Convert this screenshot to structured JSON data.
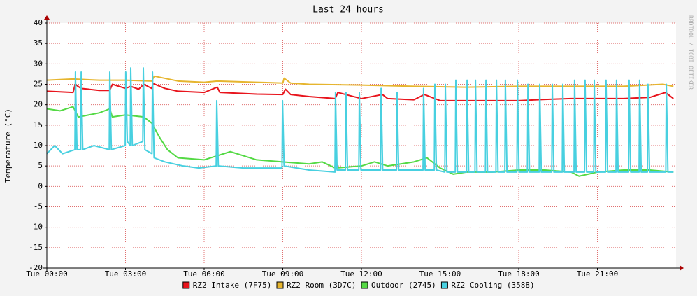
{
  "chart_data": {
    "type": "line",
    "title": "Last 24 hours",
    "y_label": "Temperature (°C)",
    "watermark": "RRDTOOL / TOBI OETIKER",
    "xlim": [
      0,
      24
    ],
    "xticks": [
      {
        "value": 0,
        "label": "Tue 00:00"
      },
      {
        "value": 3,
        "label": "Tue 03:00"
      },
      {
        "value": 6,
        "label": "Tue 06:00"
      },
      {
        "value": 9,
        "label": "Tue 09:00"
      },
      {
        "value": 12,
        "label": "Tue 12:00"
      },
      {
        "value": 15,
        "label": "Tue 15:00"
      },
      {
        "value": 18,
        "label": "Tue 18:00"
      },
      {
        "value": 21,
        "label": "Tue 21:00"
      }
    ],
    "ylim": [
      -20,
      40
    ],
    "yticks": [
      -20,
      -15,
      -10,
      -5,
      0,
      5,
      10,
      15,
      20,
      25,
      30,
      35,
      40
    ],
    "grid": true,
    "legend": "bottom",
    "series": [
      {
        "name": "RZ2 Intake (7F75)",
        "color": "#e8141c",
        "x": [
          0,
          1,
          1.08,
          1.3,
          2,
          2.4,
          2.5,
          3,
          3.2,
          3.5,
          3.7,
          4,
          4.05,
          4.5,
          5,
          6,
          6.5,
          6.6,
          8,
          9,
          9.1,
          9.3,
          10,
          11,
          11.1,
          12,
          12.8,
          13,
          14,
          14.4,
          15,
          16,
          17,
          18,
          19,
          20,
          21,
          22,
          23,
          23.6,
          23.9
        ],
        "values": [
          23.3,
          23,
          25,
          24,
          23.5,
          23.5,
          25,
          24,
          24.5,
          23.8,
          25,
          24,
          25.2,
          24,
          23.3,
          23,
          24.3,
          23,
          22.6,
          22.5,
          23.8,
          22.5,
          22,
          21.5,
          23,
          21.5,
          22.5,
          21.5,
          21.2,
          22.5,
          21,
          21,
          21,
          21,
          21.3,
          21.5,
          21.5,
          21.5,
          21.8,
          23,
          21.5
        ]
      },
      {
        "name": "RZ2 Room (3D7C)",
        "color": "#e6b52e",
        "x": [
          0,
          1,
          2,
          3,
          4,
          4.1,
          5,
          6,
          6.5,
          8,
          9,
          9.05,
          9.3,
          10,
          12,
          14,
          16,
          18,
          20,
          22,
          23.5,
          23.9
        ],
        "values": [
          26,
          26.3,
          26,
          26,
          25.8,
          27,
          25.8,
          25.5,
          25.8,
          25.5,
          25.3,
          26.5,
          25.3,
          25,
          24.8,
          24.5,
          24.3,
          24.5,
          24.5,
          24.5,
          25,
          24.5
        ]
      },
      {
        "name": "Outdoor (2745)",
        "color": "#54d944",
        "x": [
          0,
          0.5,
          1,
          1.2,
          2,
          2.4,
          2.5,
          3,
          3.7,
          4,
          4.3,
          4.6,
          5,
          6,
          6.5,
          7,
          7.5,
          8,
          9,
          10,
          10.5,
          11,
          12,
          12.5,
          13,
          14,
          14.5,
          15,
          15.5,
          16,
          17,
          18,
          19,
          20,
          20.3,
          21,
          22,
          23,
          23.9
        ],
        "values": [
          19,
          18.5,
          19.5,
          17,
          18,
          19,
          17,
          17.5,
          17,
          15.5,
          12,
          9,
          7,
          6.5,
          7.5,
          8.5,
          7.5,
          6.5,
          6,
          5.5,
          6,
          4.5,
          5,
          6,
          5,
          6,
          7,
          4.5,
          3,
          3.5,
          3.5,
          4,
          4,
          3.5,
          2.5,
          3.5,
          4,
          4,
          3.5
        ]
      },
      {
        "name": "RZ2 Cooling (3588)",
        "color": "#48d0e0",
        "x": [
          0,
          0.3,
          0.6,
          1.07,
          1.09,
          1.15,
          1.29,
          1.31,
          1.37,
          1.8,
          2.38,
          2.4,
          2.46,
          2.99,
          3.01,
          3.07,
          3.18,
          3.2,
          3.26,
          3.66,
          3.68,
          3.74,
          4.01,
          4.03,
          4.09,
          4.5,
          5.2,
          5.8,
          6.46,
          6.48,
          6.54,
          7.5,
          8.97,
          8.99,
          9.05,
          10,
          10.99,
          11.01,
          11.07,
          11.39,
          11.41,
          11.47,
          11.9,
          11.92,
          11.98,
          12.73,
          12.75,
          12.81,
          13.34,
          13.36,
          13.42,
          14.35,
          14.37,
          14.43,
          14.78,
          14.8,
          14.86,
          15.18,
          15.2,
          15.26,
          15.58,
          15.6,
          15.66,
          16.01,
          16.03,
          16.09,
          16.33,
          16.35,
          16.41,
          16.73,
          16.75,
          16.81,
          17.13,
          17.15,
          17.21,
          17.47,
          17.49,
          17.55,
          17.93,
          17.95,
          18.01,
          18.33,
          18.35,
          18.41,
          18.78,
          18.8,
          18.86,
          19.26,
          19.28,
          19.34,
          19.66,
          19.68,
          19.74,
          20.11,
          20.13,
          20.19,
          20.51,
          20.53,
          20.59,
          20.86,
          20.88,
          20.94,
          21.31,
          21.33,
          21.39,
          21.71,
          21.73,
          21.79,
          22.19,
          22.21,
          22.27,
          22.59,
          22.61,
          22.67,
          22.91,
          22.93,
          22.99,
          23.61,
          23.63,
          23.69,
          23.9
        ],
        "values": [
          8,
          10,
          8,
          9,
          28,
          9,
          9,
          28,
          9,
          10,
          9,
          28,
          9,
          10,
          28,
          11,
          10,
          29,
          10,
          11,
          29,
          9,
          8,
          28,
          7,
          6,
          5,
          4.5,
          5,
          21,
          5,
          4.5,
          4.5,
          21,
          5,
          4,
          3.5,
          23,
          4,
          4,
          23,
          4,
          4,
          23,
          4,
          4,
          24,
          4,
          4,
          23,
          4,
          4,
          24,
          4,
          4,
          25,
          4,
          3.5,
          25,
          3.5,
          3.5,
          26,
          3.5,
          3.5,
          26,
          3.5,
          3.5,
          26,
          3.5,
          3.5,
          26,
          3.5,
          3.5,
          26,
          3.5,
          3.5,
          26,
          3.5,
          3.5,
          26,
          3.5,
          3.5,
          25,
          3.5,
          3.5,
          25,
          3.5,
          3.5,
          25,
          3.5,
          3.5,
          25,
          3.5,
          3.5,
          26,
          3.5,
          3.5,
          26,
          3.5,
          3.5,
          26,
          3.5,
          3.5,
          26,
          3.5,
          3.5,
          26,
          3.5,
          3.5,
          26,
          3.5,
          3.5,
          26,
          3.5,
          3.5,
          25,
          3.5,
          3.5,
          25,
          3.5,
          3.5
        ]
      }
    ]
  }
}
